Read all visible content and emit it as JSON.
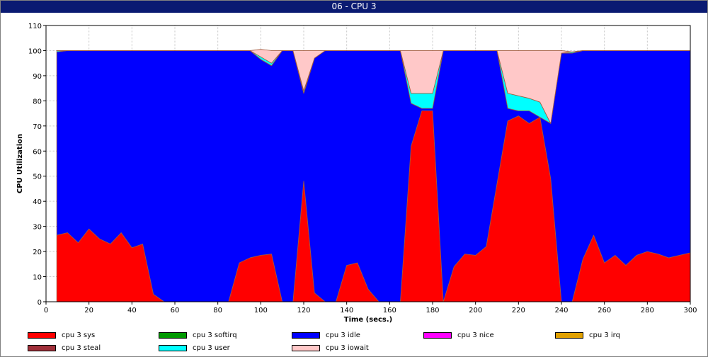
{
  "window": {
    "title": "06 - CPU 3"
  },
  "chart_data": {
    "type": "area",
    "stacked": true,
    "title": "",
    "xlabel": "Time (secs.)",
    "ylabel": "CPU Utilization",
    "xlim": [
      0,
      300
    ],
    "ylim": [
      0,
      110
    ],
    "xticks": [
      0,
      20,
      40,
      60,
      80,
      100,
      120,
      140,
      160,
      180,
      200,
      220,
      240,
      260,
      280,
      300
    ],
    "yticks": [
      0,
      10,
      20,
      30,
      40,
      50,
      60,
      70,
      80,
      90,
      100,
      110
    ],
    "grid": true,
    "legend_position": "bottom",
    "x": [
      5,
      10,
      15,
      20,
      25,
      30,
      35,
      40,
      45,
      50,
      55,
      60,
      65,
      70,
      75,
      80,
      85,
      90,
      95,
      100,
      105,
      110,
      115,
      120,
      125,
      130,
      135,
      140,
      145,
      150,
      155,
      160,
      165,
      170,
      175,
      180,
      185,
      190,
      195,
      200,
      205,
      210,
      215,
      220,
      225,
      230,
      235,
      240,
      245,
      250,
      255,
      260,
      265,
      270,
      275,
      280,
      285,
      290,
      295,
      300
    ],
    "series": [
      {
        "name": "cpu 3 sys",
        "color": "#ff0000",
        "values": [
          26.5,
          27.5,
          23.5,
          29,
          25,
          23,
          27.5,
          21.5,
          23,
          3,
          0,
          0,
          0,
          0,
          0,
          0,
          0,
          15.5,
          17.5,
          18.5,
          19,
          0,
          0,
          48,
          3.5,
          0,
          0,
          14.5,
          15.5,
          5,
          0,
          0,
          0,
          62,
          76,
          76,
          0,
          14,
          19,
          18.5,
          22,
          47,
          72,
          74,
          71,
          73.5,
          49,
          0,
          0,
          17,
          26.5,
          15.5,
          18.5,
          14.5,
          18.5,
          20,
          19,
          17.5,
          18.5,
          19.5
        ]
      },
      {
        "name": "cpu 3 softirq",
        "color": "#009900",
        "values": [
          0,
          0,
          0,
          0,
          0,
          0,
          0,
          0,
          0,
          0,
          0,
          0,
          0,
          0,
          0,
          0,
          0,
          0,
          0,
          0,
          0,
          0,
          0,
          0,
          0,
          0,
          0,
          0,
          0,
          0,
          0,
          0,
          0,
          0,
          0,
          0,
          0,
          0,
          0,
          0,
          0,
          0,
          0,
          0,
          0,
          0,
          0,
          0,
          0,
          0,
          0,
          0,
          0,
          0,
          0,
          0,
          0,
          0,
          0,
          0
        ]
      },
      {
        "name": "cpu 3 idle",
        "color": "#0000ff",
        "values": [
          73,
          72.5,
          76.5,
          71,
          75,
          77,
          72.5,
          78.5,
          77,
          97,
          100,
          100,
          100,
          100,
          100,
          100,
          100,
          84.5,
          82.5,
          78,
          75,
          100,
          100,
          35,
          93.5,
          100,
          100,
          85.5,
          84.5,
          95,
          100,
          100,
          100,
          17,
          1,
          1,
          100,
          86,
          81,
          81.5,
          78,
          53,
          5,
          2,
          5,
          0,
          22,
          99,
          99,
          83,
          73.5,
          84.5,
          81.5,
          85.5,
          81.5,
          80,
          81,
          82.5,
          81.5,
          80.5
        ]
      },
      {
        "name": "cpu 3 nice",
        "color": "#ff00ff",
        "values": [
          0,
          0,
          0,
          0,
          0,
          0,
          0,
          0,
          0,
          0,
          0,
          0,
          0,
          0,
          0,
          0,
          0,
          0,
          0,
          0,
          0,
          0,
          0,
          0,
          0,
          0,
          0,
          0,
          0,
          0,
          0,
          0,
          0,
          0,
          0,
          0,
          0,
          0,
          0,
          0,
          0,
          0,
          0,
          0,
          0,
          0,
          0,
          0,
          0,
          0,
          0,
          0,
          0,
          0,
          0,
          0,
          0,
          0,
          0,
          0
        ]
      },
      {
        "name": "cpu 3 irq",
        "color": "#e0a000",
        "values": [
          0,
          0,
          0,
          0,
          0,
          0,
          0,
          0,
          0,
          0,
          0,
          0,
          0,
          0,
          0,
          0,
          0,
          0,
          0,
          0,
          0,
          0,
          0,
          0,
          0,
          0,
          0,
          0,
          0,
          0,
          0,
          0,
          0,
          0,
          0,
          0,
          0,
          0,
          0,
          0,
          0,
          0,
          0,
          0,
          0,
          0,
          0,
          0,
          0,
          0,
          0,
          0,
          0,
          0,
          0,
          0,
          0,
          0,
          0,
          0
        ]
      },
      {
        "name": "cpu 3 steal",
        "color": "#a0303a",
        "values": [
          0,
          0,
          0,
          0,
          0,
          0,
          0,
          0,
          0,
          0,
          0,
          0,
          0,
          0,
          0,
          0,
          0,
          0,
          0,
          0,
          0,
          0,
          0,
          0,
          0,
          0,
          0,
          0,
          0,
          0,
          0,
          0,
          0,
          0,
          0,
          0,
          0,
          0,
          0,
          0,
          0,
          0,
          0,
          0,
          0,
          0,
          0,
          0,
          0,
          0,
          0,
          0,
          0,
          0,
          0,
          0,
          0,
          0,
          0,
          0
        ]
      },
      {
        "name": "cpu 3 user",
        "color": "#00ffff",
        "values": [
          0.5,
          0,
          0,
          0,
          0,
          0,
          0,
          0,
          0,
          0,
          0,
          0,
          0,
          0,
          0,
          0,
          0,
          0,
          0,
          1,
          1,
          0,
          0,
          1,
          0,
          0,
          0,
          0,
          0,
          0,
          0,
          0,
          0,
          4,
          6,
          6,
          0,
          0,
          0,
          0,
          0,
          0,
          6,
          6,
          5,
          6,
          0,
          0,
          0.5,
          0,
          0,
          0,
          0,
          0,
          0,
          0,
          0,
          0,
          0,
          0
        ]
      },
      {
        "name": "cpu 3 iowait",
        "color": "#ffc8c8",
        "values": [
          0,
          0,
          0,
          0,
          0,
          0,
          0,
          0,
          0,
          0,
          0,
          0,
          0,
          0,
          0,
          0,
          0,
          0,
          0,
          3,
          5,
          0,
          0,
          16,
          3,
          0,
          0,
          0,
          0,
          0,
          0,
          0,
          0,
          17,
          17,
          17,
          0,
          0,
          0,
          0,
          0,
          0,
          17,
          18,
          19,
          20.5,
          29,
          1,
          0,
          0,
          0,
          0,
          0,
          0,
          0,
          0,
          0,
          0,
          0,
          0
        ]
      }
    ]
  },
  "legend": [
    {
      "name": "cpu 3 sys",
      "color": "#ff0000"
    },
    {
      "name": "cpu 3 softirq",
      "color": "#009900"
    },
    {
      "name": "cpu 3 idle",
      "color": "#0000ff"
    },
    {
      "name": "cpu 3 nice",
      "color": "#ff00ff"
    },
    {
      "name": "cpu 3 irq",
      "color": "#e0a000"
    },
    {
      "name": "cpu 3 steal",
      "color": "#a0303a"
    },
    {
      "name": "cpu 3 user",
      "color": "#00ffff"
    },
    {
      "name": "cpu 3 iowait",
      "color": "#ffc8c8"
    }
  ]
}
